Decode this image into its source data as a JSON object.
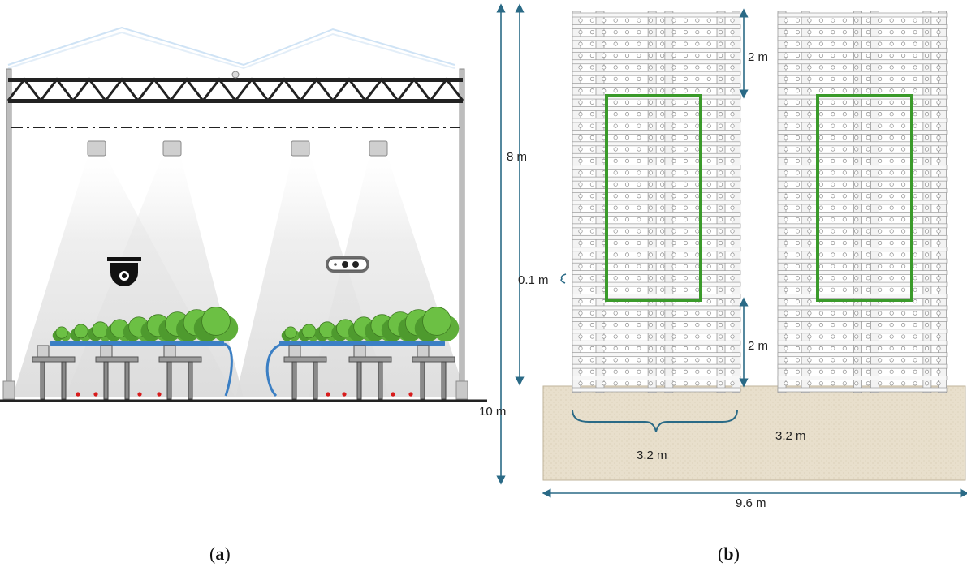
{
  "panel_a": {
    "caption_open": "(",
    "caption_letter": "a",
    "caption_close": ")"
  },
  "panel_b": {
    "caption_open": "(",
    "caption_letter": "b",
    "caption_close": ")",
    "labels": {
      "height_total": "10 m",
      "height_upper": "8 m",
      "gap_top": "2 m",
      "gap_bottom": "2 m",
      "tube_spacing": "0.1 m",
      "bench_width": "3.2 m",
      "aisle_width": "3.2 m",
      "floor_width": "9.6 m"
    }
  },
  "colors": {
    "frame": "#2a2a2a",
    "highlight": "#3a9a2a",
    "floor": "#e8dfcc",
    "dimension": "#2a6a86",
    "pipe": "#3b7fc4",
    "plant": "#5aa83a",
    "marker": "#d81b1b"
  },
  "icons": [
    "truss-icon",
    "lamp-icon",
    "dome-camera-icon",
    "stereo-camera-icon",
    "lettuce-plant-icon",
    "dimension-arrow-icon",
    "brace-icon"
  ]
}
